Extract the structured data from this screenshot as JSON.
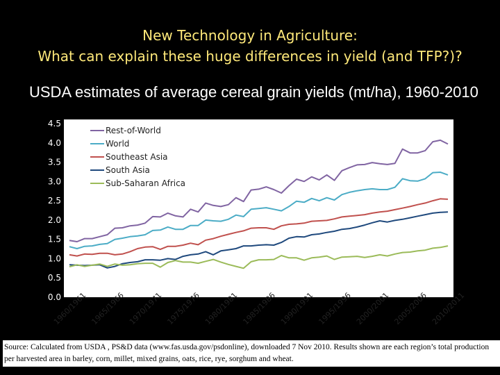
{
  "slide": {
    "title_line1": "New Technology in Agriculture:",
    "title_line2": "What can explain these huge differences in yield (and TFP?)?",
    "subtitle": "USDA estimates of average cereal grain yields (mt/ha), 1960-2010",
    "source": "Source: Calculated from USDA , PS&D data (www.fas.usda.gov/psdonline), downloaded 7 Nov 2010. Results shown are each region’s total production per harvested area in barley, corn, millet, mixed grains, oats, rice, rye, sorghum and wheat."
  },
  "chart_data": {
    "type": "line",
    "title": "",
    "xlabel": "",
    "ylabel": "",
    "ylim": [
      0,
      4.5
    ],
    "y_ticks": [
      "0.0",
      "0.5",
      "1.0",
      "1.5",
      "2.0",
      "2.5",
      "3.0",
      "3.5",
      "4.0",
      "4.5"
    ],
    "x_tick_labels": [
      "1960/1961",
      "1965/1966",
      "1970/1971",
      "1975/1976",
      "1980/1981",
      "1985/1986",
      "1990/1991",
      "1995/1996",
      "2000/2001",
      "2005/2006",
      "2010/2011"
    ],
    "x_start_year": 1960,
    "legend_position": "top-left",
    "series": [
      {
        "name": "Rest-of-World",
        "color": "#8064a2",
        "values": [
          1.47,
          1.44,
          1.52,
          1.52,
          1.57,
          1.62,
          1.79,
          1.8,
          1.85,
          1.87,
          1.92,
          2.09,
          2.08,
          2.18,
          2.11,
          2.08,
          2.28,
          2.21,
          2.44,
          2.38,
          2.35,
          2.4,
          2.58,
          2.48,
          2.78,
          2.8,
          2.86,
          2.79,
          2.7,
          2.89,
          3.06,
          3.0,
          3.12,
          3.04,
          3.17,
          3.03,
          3.28,
          3.36,
          3.43,
          3.44,
          3.49,
          3.46,
          3.44,
          3.47,
          3.84,
          3.74,
          3.74,
          3.8,
          4.03,
          4.07,
          3.97
        ]
      },
      {
        "name": "World",
        "color": "#4bacc6",
        "values": [
          1.31,
          1.26,
          1.32,
          1.33,
          1.37,
          1.39,
          1.5,
          1.53,
          1.57,
          1.59,
          1.62,
          1.73,
          1.74,
          1.82,
          1.76,
          1.76,
          1.86,
          1.86,
          2.0,
          1.98,
          1.97,
          2.02,
          2.13,
          2.09,
          2.28,
          2.3,
          2.32,
          2.28,
          2.24,
          2.35,
          2.49,
          2.46,
          2.56,
          2.5,
          2.58,
          2.52,
          2.66,
          2.72,
          2.76,
          2.79,
          2.81,
          2.79,
          2.79,
          2.85,
          3.07,
          3.02,
          3.01,
          3.07,
          3.23,
          3.24,
          3.17
        ]
      },
      {
        "name": "Southeast Asia",
        "color": "#c0504d",
        "values": [
          1.1,
          1.07,
          1.12,
          1.11,
          1.14,
          1.14,
          1.1,
          1.12,
          1.18,
          1.26,
          1.3,
          1.31,
          1.24,
          1.32,
          1.32,
          1.35,
          1.4,
          1.36,
          1.48,
          1.52,
          1.58,
          1.63,
          1.68,
          1.72,
          1.79,
          1.8,
          1.8,
          1.76,
          1.85,
          1.89,
          1.9,
          1.92,
          1.97,
          1.98,
          1.99,
          2.03,
          2.08,
          2.1,
          2.12,
          2.14,
          2.18,
          2.21,
          2.23,
          2.27,
          2.31,
          2.35,
          2.4,
          2.44,
          2.5,
          2.55,
          2.54
        ]
      },
      {
        "name": "South Asia",
        "color": "#1f497d",
        "values": [
          0.84,
          0.83,
          0.82,
          0.83,
          0.84,
          0.76,
          0.8,
          0.87,
          0.9,
          0.92,
          0.97,
          0.97,
          0.96,
          1.0,
          0.98,
          1.06,
          1.1,
          1.12,
          1.18,
          1.1,
          1.2,
          1.23,
          1.26,
          1.33,
          1.33,
          1.35,
          1.36,
          1.35,
          1.42,
          1.53,
          1.57,
          1.56,
          1.62,
          1.64,
          1.68,
          1.71,
          1.76,
          1.78,
          1.82,
          1.87,
          1.93,
          1.98,
          1.95,
          1.99,
          2.02,
          2.06,
          2.1,
          2.14,
          2.18,
          2.2,
          2.21
        ]
      },
      {
        "name": "Sub-Saharan Africa",
        "color": "#9bbb59",
        "values": [
          0.79,
          0.84,
          0.8,
          0.83,
          0.86,
          0.8,
          0.86,
          0.83,
          0.84,
          0.87,
          0.88,
          0.88,
          0.78,
          0.9,
          0.95,
          0.91,
          0.91,
          0.88,
          0.93,
          0.98,
          0.91,
          0.85,
          0.8,
          0.75,
          0.92,
          0.97,
          0.97,
          0.98,
          1.08,
          1.02,
          1.02,
          0.96,
          1.02,
          1.04,
          1.07,
          0.98,
          1.04,
          1.05,
          1.06,
          1.03,
          1.06,
          1.1,
          1.07,
          1.12,
          1.16,
          1.17,
          1.2,
          1.22,
          1.27,
          1.29,
          1.33
        ]
      }
    ]
  }
}
